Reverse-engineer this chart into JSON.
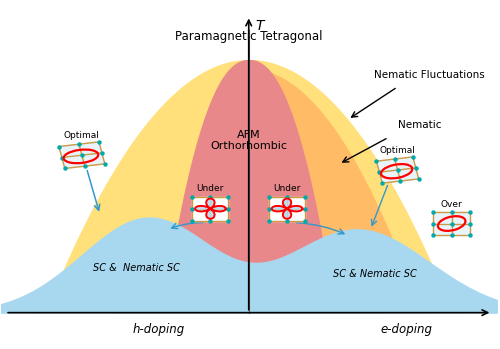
{
  "bg_color": "#ffffff",
  "fig_w": 5.0,
  "fig_h": 3.49,
  "nematic_fluct_color": "#FFE07A",
  "nematic_order_color": "#FFBB66",
  "afm_color": "#E8888A",
  "sc_color": "#A8D8F0",
  "labels": {
    "T_axis": "T",
    "paramagnetic": "Paramagnetic Tetragonal",
    "afm": "AFM\nOrthorhombic",
    "nematic_fluct": "Nematic Fluctuations",
    "nematic": "Nematic",
    "sc_left": "SC &  Nematic SC",
    "sc_right": "SC & Nematic SC",
    "optimal_left": "Optimal",
    "under_left": "Under",
    "under_right": "Under",
    "optimal_right": "Optimal",
    "over_right": "Over",
    "h_doping": "h-doping",
    "e_doping": "e-doping"
  },
  "xlim": [
    -5.5,
    5.5
  ],
  "ylim": [
    -1.2,
    10.5
  ]
}
